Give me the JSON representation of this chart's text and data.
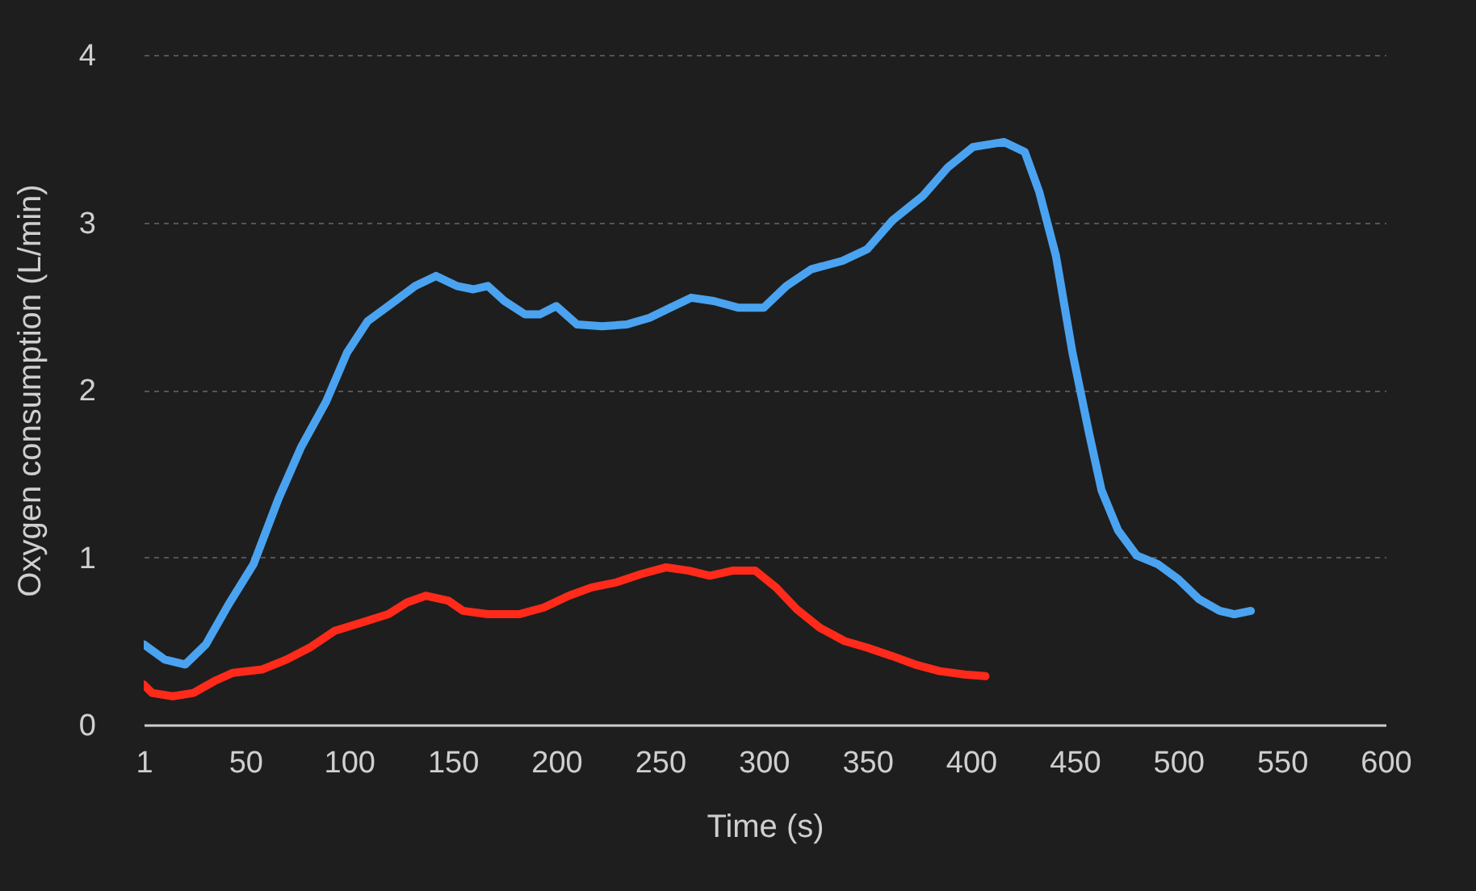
{
  "chart_data": {
    "type": "line",
    "xlabel": "Time (s)",
    "ylabel": "Oxygen consumption (L/min)",
    "xlim": [
      1,
      600
    ],
    "xticks": [
      1,
      50,
      100,
      150,
      200,
      250,
      300,
      350,
      400,
      450,
      500,
      550,
      600
    ],
    "ylim": [
      0,
      4
    ],
    "yticks": [
      0,
      1,
      2,
      3,
      4
    ],
    "grid": "y",
    "series": [
      {
        "color": "#4aa3f0",
        "x": [
          1,
          11,
          21,
          31,
          42,
          54,
          66,
          77,
          89,
          99,
          109,
          120,
          132,
          142,
          152,
          160,
          167,
          175,
          185,
          192,
          200,
          210,
          222,
          234,
          245,
          255,
          265,
          276,
          288,
          300,
          311,
          323,
          338,
          350,
          362,
          377,
          389,
          401,
          416,
          426,
          433,
          441,
          449,
          457,
          463,
          471,
          480,
          490,
          500,
          510,
          520,
          527,
          535
        ],
        "values": [
          0.48,
          0.39,
          0.36,
          0.48,
          0.72,
          0.96,
          1.35,
          1.66,
          1.93,
          2.22,
          2.41,
          2.51,
          2.62,
          2.68,
          2.62,
          2.6,
          2.62,
          2.53,
          2.45,
          2.45,
          2.5,
          2.39,
          2.38,
          2.39,
          2.43,
          2.49,
          2.55,
          2.53,
          2.49,
          2.49,
          2.62,
          2.72,
          2.77,
          2.84,
          3.01,
          3.16,
          3.33,
          3.45,
          3.48,
          3.42,
          3.18,
          2.8,
          2.22,
          1.74,
          1.4,
          1.16,
          1.01,
          0.96,
          0.87,
          0.75,
          0.68,
          0.66,
          0.68
        ]
      },
      {
        "color": "#ff2a1a",
        "x": [
          1,
          5,
          15,
          25,
          35,
          44,
          58,
          70,
          81,
          93,
          106,
          119,
          128,
          137,
          148,
          155,
          167,
          182,
          194,
          206,
          217,
          229,
          241,
          253,
          264,
          274,
          285,
          296,
          306,
          316,
          327,
          339,
          350,
          362,
          373,
          385,
          397,
          407
        ],
        "values": [
          0.24,
          0.19,
          0.17,
          0.19,
          0.26,
          0.31,
          0.33,
          0.39,
          0.46,
          0.56,
          0.61,
          0.66,
          0.73,
          0.77,
          0.74,
          0.68,
          0.66,
          0.66,
          0.7,
          0.77,
          0.82,
          0.85,
          0.9,
          0.94,
          0.92,
          0.89,
          0.92,
          0.92,
          0.82,
          0.69,
          0.58,
          0.5,
          0.46,
          0.41,
          0.36,
          0.32,
          0.3,
          0.29
        ]
      }
    ]
  }
}
